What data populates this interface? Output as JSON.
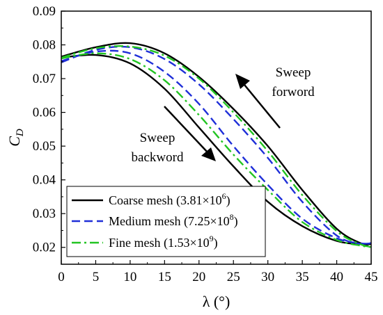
{
  "chart_data": {
    "type": "line",
    "xlabel": "λ (°)",
    "ylabel": "C",
    "ylabel_sub": "D",
    "xlim": [
      0,
      45
    ],
    "ylim": [
      0.015,
      0.09
    ],
    "xticks": [
      "0",
      "5",
      "10",
      "15",
      "20",
      "25",
      "30",
      "35",
      "40",
      "45"
    ],
    "yticks": [
      "0.02",
      "0.03",
      "0.04",
      "0.05",
      "0.06",
      "0.07",
      "0.08",
      "0.09"
    ],
    "grid": false,
    "legend_position": "bottom-left",
    "annotations": [
      {
        "lines": [
          "Sweep",
          "forword"
        ],
        "arrow": "up-left"
      },
      {
        "lines": [
          "Sweep",
          "backword"
        ],
        "arrow": "down-right"
      }
    ],
    "series": [
      {
        "name": "Coarse mesh (3.81×10⁶)",
        "label_base": "Coarse mesh (3.81×10",
        "label_exp": "6",
        "label_end": ")",
        "color": "#000000",
        "dash": "solid",
        "branches": [
          {
            "direction": "forward",
            "x": [
              0,
              5,
              10,
              15,
              20,
              25,
              30,
              35,
              40,
              43.5,
              45
            ],
            "y": [
              0.0765,
              0.0793,
              0.0805,
              0.0775,
              0.0705,
              0.061,
              0.05,
              0.037,
              0.0255,
              0.0212,
              0.021
            ]
          },
          {
            "direction": "backward",
            "x": [
              0,
              5,
              10,
              15,
              20,
              25,
              30,
              35,
              40,
              43.5,
              45
            ],
            "y": [
              0.0762,
              0.077,
              0.0745,
              0.067,
              0.0555,
              0.044,
              0.0335,
              0.0263,
              0.0219,
              0.021,
              0.0212
            ]
          }
        ]
      },
      {
        "name": "Medium mesh (7.25×10⁸)",
        "label_base": "Medium mesh (7.25×10",
        "label_exp": "8",
        "label_end": ")",
        "color": "#1f2fd8",
        "dash": "dashed",
        "branches": [
          {
            "direction": "forward",
            "x": [
              0,
              5,
              10,
              15,
              20,
              25,
              30,
              35,
              40,
              43.5,
              45
            ],
            "y": [
              0.0748,
              0.0785,
              0.0793,
              0.0758,
              0.0683,
              0.058,
              0.0465,
              0.0335,
              0.0235,
              0.021,
              0.0213
            ]
          },
          {
            "direction": "backward",
            "x": [
              0,
              5,
              10,
              15,
              20,
              25,
              30,
              35,
              40,
              43.5,
              45
            ],
            "y": [
              0.0752,
              0.078,
              0.0775,
              0.072,
              0.0625,
              0.05,
              0.0385,
              0.0285,
              0.0227,
              0.0212,
              0.0212
            ]
          }
        ]
      },
      {
        "name": "Fine mesh (1.53×10⁹)",
        "label_base": "Fine mesh (1.53×10",
        "label_exp": "9",
        "label_end": ")",
        "color": "#22c422",
        "dash": "dashdot",
        "branches": [
          {
            "direction": "forward",
            "x": [
              0,
              5,
              10,
              15,
              20,
              25,
              30,
              35,
              40,
              43.5,
              45
            ],
            "y": [
              0.0762,
              0.079,
              0.0795,
              0.0768,
              0.07,
              0.06,
              0.0485,
              0.0355,
              0.0248,
              0.0209,
              0.0202
            ]
          },
          {
            "direction": "backward",
            "x": [
              0,
              5,
              10,
              15,
              20,
              25,
              30,
              35,
              40,
              43.5,
              45
            ],
            "y": [
              0.076,
              0.0775,
              0.0758,
              0.0695,
              0.0592,
              0.0475,
              0.037,
              0.0275,
              0.0222,
              0.0205,
              0.0201
            ]
          }
        ]
      }
    ]
  }
}
